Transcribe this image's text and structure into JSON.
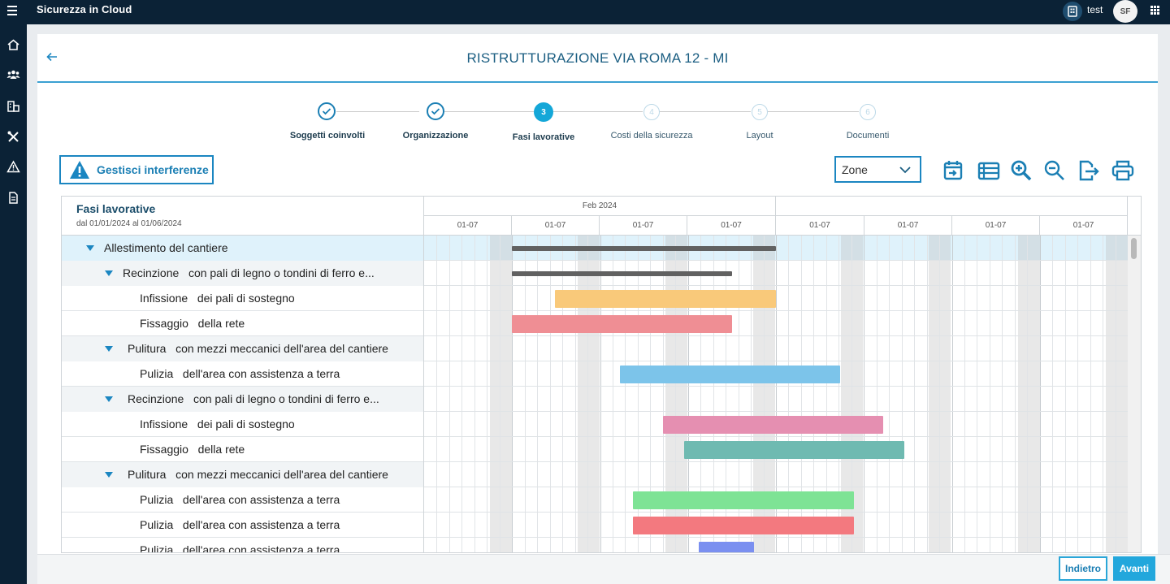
{
  "topbar": {
    "app_title": "Sicurezza in Cloud",
    "user_name": "test",
    "avatar_initials": "SF"
  },
  "page": {
    "title": "RISTRUTTURAZIONE VIA ROMA 12 - MI"
  },
  "stepper": {
    "steps": [
      {
        "label": "Soggetti coinvolti",
        "state": "done",
        "number": ""
      },
      {
        "label": "Organizzazione",
        "state": "done",
        "number": ""
      },
      {
        "label": "Fasi lavorative",
        "state": "active",
        "number": "3"
      },
      {
        "label": "Costi della sicurezza",
        "state": "todo",
        "number": "4"
      },
      {
        "label": "Layout",
        "state": "todo",
        "number": "5"
      },
      {
        "label": "Documenti",
        "state": "todo",
        "number": "6"
      }
    ]
  },
  "toolbar": {
    "interference_label": "Gestisci interferenze",
    "zone_select_value": "Zone",
    "icons": [
      "calendar-export-icon",
      "list-view-icon",
      "zoom-in-icon",
      "zoom-out-icon",
      "export-icon",
      "print-icon"
    ]
  },
  "gantt": {
    "header_title": "Fasi lavorative",
    "header_subtitle": "dal 01/01/2024 al 01/06/2024",
    "month_label": "Feb 2024",
    "week_labels": [
      "01-07",
      "01-07",
      "01-07",
      "01-07",
      "01-07",
      "01-07",
      "01-07",
      "01-07"
    ],
    "rows": [
      {
        "level": 0,
        "expandable": true,
        "name": "Allestimento del cantiere",
        "detail": ""
      },
      {
        "level": 1,
        "expandable": true,
        "name": "Recinzione",
        "detail": "con pali di legno o tondini di ferro e..."
      },
      {
        "level": 2,
        "expandable": false,
        "name": "Infissione",
        "detail": "dei pali di sostegno"
      },
      {
        "level": 2,
        "expandable": false,
        "name": "Fissaggio",
        "detail": "della rete"
      },
      {
        "level": 1,
        "expandable": true,
        "name": "Pulitura",
        "detail": "con mezzi meccanici dell'area del cantiere"
      },
      {
        "level": 2,
        "expandable": false,
        "name": "Pulizia",
        "detail": "dell'area con assistenza a terra"
      },
      {
        "level": 1,
        "expandable": true,
        "name": "Recinzione",
        "detail": "con pali di legno o tondini di ferro e..."
      },
      {
        "level": 2,
        "expandable": false,
        "name": "Infissione",
        "detail": "dei pali di sostegno"
      },
      {
        "level": 2,
        "expandable": false,
        "name": "Fissaggio",
        "detail": "della rete"
      },
      {
        "level": 1,
        "expandable": true,
        "name": "Pulitura",
        "detail": "con mezzi meccanici dell'area del cantiere"
      },
      {
        "level": 2,
        "expandable": false,
        "name": "Pulizia",
        "detail": "dell'area con assistenza a terra"
      },
      {
        "level": 2,
        "expandable": false,
        "name": "Pulizia",
        "detail": "dell'area con assistenza a terra"
      },
      {
        "level": 2,
        "expandable": false,
        "name": "Pulizia",
        "detail": "dell'area con assistenza a terra"
      }
    ],
    "colors": {
      "summary": "#616161",
      "orange": "#f9c97a",
      "salmon": "#ef8e94",
      "blue": "#7cc4ea",
      "pink": "#e58fb1",
      "teal": "#6fbab1",
      "green": "#7ee395",
      "red": "#f3797f",
      "indigo": "#7a8ff0"
    }
  },
  "footer": {
    "back_label": "Indietro",
    "next_label": "Avanti"
  }
}
